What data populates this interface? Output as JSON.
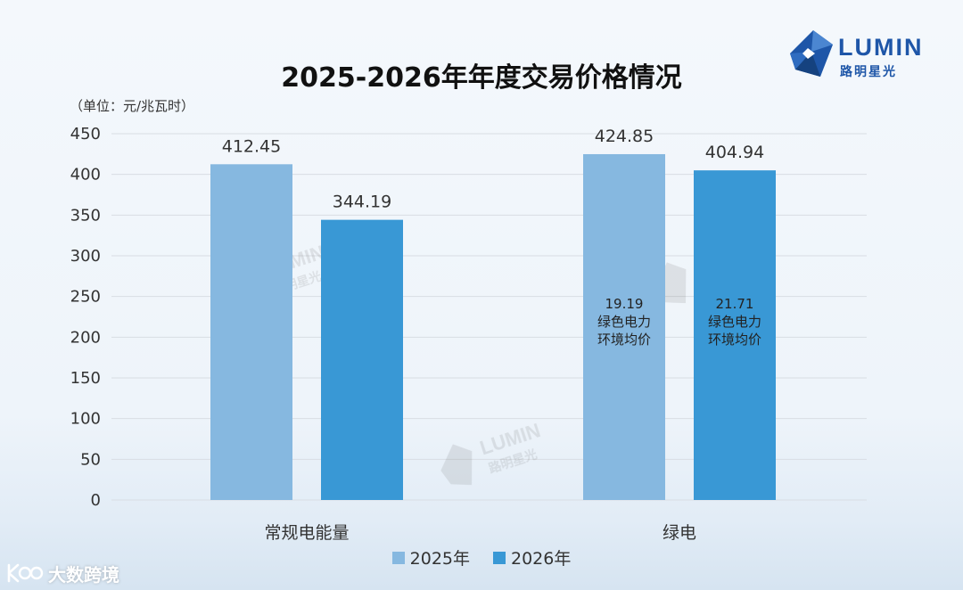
{
  "chart_data": {
    "type": "bar",
    "title": "2025-2026年年度交易价格情况",
    "unit_label": "（单位：元/兆瓦时）",
    "categories": [
      "常规电能量",
      "绿电"
    ],
    "series": [
      {
        "name": "2025年",
        "color": "#86b8e0",
        "values": [
          412.45,
          424.85
        ]
      },
      {
        "name": "2026年",
        "color": "#3998d5",
        "values": [
          344.19,
          404.94
        ]
      }
    ],
    "data_labels": [
      [
        "412.45",
        "424.85"
      ],
      [
        "344.19",
        "404.94"
      ]
    ],
    "annotations": [
      {
        "category": "绿电",
        "series": "2025年",
        "lines": [
          "19.19",
          "绿色电力",
          "环境均价"
        ]
      },
      {
        "category": "绿电",
        "series": "2026年",
        "lines": [
          "21.71",
          "绿色电力",
          "环境均价"
        ]
      }
    ],
    "yticks": [
      "0",
      "50",
      "100",
      "150",
      "200",
      "250",
      "300",
      "350",
      "400",
      "450"
    ],
    "ylim": [
      0,
      450
    ],
    "grid": true,
    "legend": "bottom"
  },
  "logo": {
    "name": "LUMIN",
    "subtitle": "路明星光",
    "icon": "lumin-star-icon"
  },
  "watermark": {
    "name": "LUMIN",
    "subtitle": "路明星光"
  },
  "brand": {
    "icon": "dashu-logo-icon",
    "name": "大数跨境"
  }
}
